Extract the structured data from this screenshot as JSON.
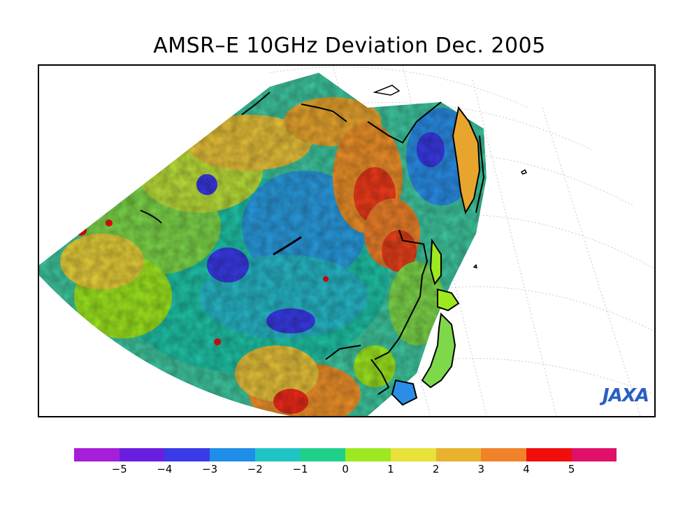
{
  "title": "AMSR–E 10GHz Deviation Dec. 2005",
  "logo_text": "JAXA",
  "logo_color": "#2a5fc4",
  "colorbar": {
    "colors": [
      "#a51fd8",
      "#6a1fe0",
      "#3a3ae8",
      "#1f8ee8",
      "#1fc4c4",
      "#1fd08a",
      "#9ee81f",
      "#e8e13a",
      "#e8b22e",
      "#f2822a",
      "#f20d0d",
      "#e0106a"
    ],
    "tick_labels": [
      "−5",
      "−4",
      "−3",
      "−2",
      "−1",
      "0",
      "1",
      "2",
      "3",
      "4",
      "5"
    ]
  },
  "map": {
    "projection": "polar-stereographic",
    "region": "East Asia",
    "land_outside_data": "white",
    "coastline_color": "#000000",
    "graticule_style": "dotted-gray"
  }
}
